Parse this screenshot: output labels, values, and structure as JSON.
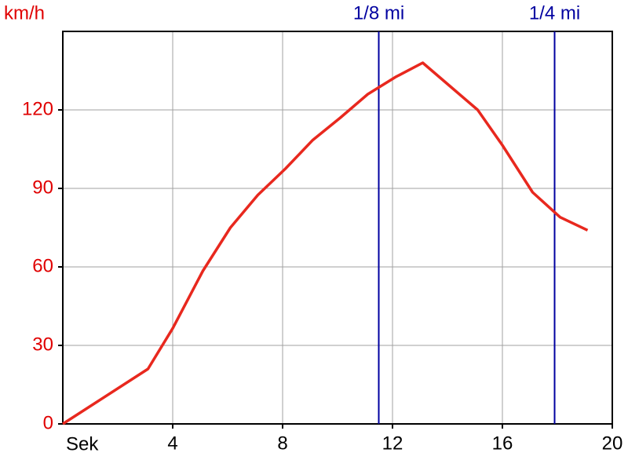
{
  "chart_data": {
    "type": "line",
    "y_label": "km/h",
    "x_label": "Sek",
    "x": [
      0,
      3.1,
      4,
      5.1,
      6.1,
      7.1,
      8.1,
      9.1,
      10.1,
      11.1,
      12.1,
      13.1,
      14.1,
      15.1,
      16,
      17.1,
      18.1,
      19.1
    ],
    "values": [
      0,
      21,
      36.5,
      58.5,
      75,
      87.5,
      97.5,
      108.5,
      117,
      126,
      132.5,
      138,
      129,
      120,
      106.5,
      88.5,
      79,
      74
    ],
    "color": "#e8281e",
    "xlim": [
      0,
      20
    ],
    "xticks": [
      4,
      8,
      12,
      16,
      20
    ],
    "ylim": [
      0,
      150
    ],
    "yticks": [
      0,
      30,
      60,
      90,
      120
    ],
    "grid": true,
    "y_tick_color": "#e00000",
    "markers": [
      {
        "label": "1/8 mi",
        "x": 11.5,
        "color": "#0000a0"
      },
      {
        "label": "1/4 mi",
        "x": 17.9,
        "color": "#0000a0"
      }
    ]
  }
}
